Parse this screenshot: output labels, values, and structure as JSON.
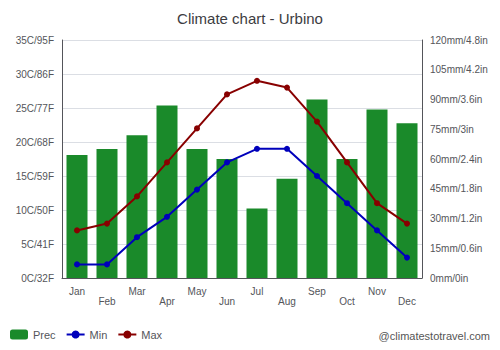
{
  "chart_data": {
    "type": "bar+line",
    "title": "Climate chart - Urbino",
    "categories": [
      "Jan",
      "Feb",
      "Mar",
      "Apr",
      "May",
      "Jun",
      "Jul",
      "Aug",
      "Sep",
      "Oct",
      "Nov",
      "Dec"
    ],
    "series": [
      {
        "name": "Prec",
        "type": "bar",
        "axis": "y2",
        "color": "#1a8a2a",
        "values": [
          62,
          65,
          72,
          87,
          65,
          60,
          35,
          50,
          90,
          60,
          85,
          78
        ]
      },
      {
        "name": "Min",
        "type": "line",
        "color": "#0000bb",
        "marker": "circle",
        "values": [
          2,
          2,
          6,
          9,
          13,
          17,
          19,
          19,
          15,
          11,
          7,
          3
        ]
      },
      {
        "name": "Max",
        "type": "line",
        "color": "#880000",
        "marker": "circle",
        "values": [
          7,
          8,
          12,
          17,
          22,
          27,
          29,
          28,
          23,
          17,
          11,
          8
        ]
      }
    ],
    "ylim": [
      0,
      35
    ],
    "yticks": [
      {
        "value": 0,
        "label": "0C/32F"
      },
      {
        "value": 5,
        "label": "5C/41F"
      },
      {
        "value": 10,
        "label": "10C/50F"
      },
      {
        "value": 15,
        "label": "15C/59F"
      },
      {
        "value": 20,
        "label": "20C/68F"
      },
      {
        "value": 25,
        "label": "25C/77F"
      },
      {
        "value": 30,
        "label": "30C/86F"
      },
      {
        "value": 35,
        "label": "35C/95F"
      }
    ],
    "y2lim": [
      0,
      120
    ],
    "y2ticks": [
      {
        "value": 0,
        "label": "0mm/0in"
      },
      {
        "value": 15,
        "label": "15mm/0.6in"
      },
      {
        "value": 30,
        "label": "30mm/1.2in"
      },
      {
        "value": 45,
        "label": "45mm/1.8in"
      },
      {
        "value": 60,
        "label": "60mm/2.4in"
      },
      {
        "value": 75,
        "label": "75mm/3in"
      },
      {
        "value": 90,
        "label": "90mm/3.6in"
      },
      {
        "value": 105,
        "label": "105mm/4.2in"
      },
      {
        "value": 120,
        "label": "120mm/4.8in"
      }
    ],
    "grid": true,
    "legend": "lower left",
    "annotations": [
      "@climatestotravel.com"
    ]
  }
}
